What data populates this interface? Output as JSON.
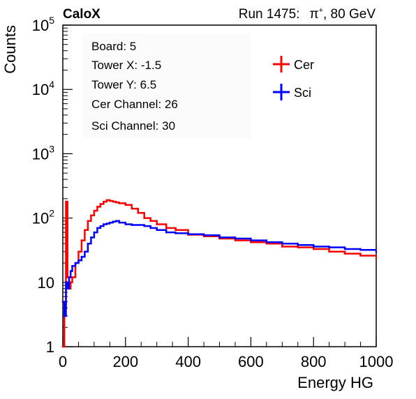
{
  "header": {
    "experiment": "CaloX",
    "run_label": "Run 1475:",
    "particle": "π",
    "particle_charge": "+",
    "energy": ", 80 GeV"
  },
  "info_box": {
    "lines": [
      "Board: 5",
      "Tower X: -1.5",
      "Tower Y: 6.5",
      "Cer Channel: 26",
      "Sci Channel: 30"
    ]
  },
  "chart_data": {
    "type": "line",
    "title": "",
    "xlabel": "Energy HG",
    "ylabel": "Counts",
    "xlim": [
      0,
      1000
    ],
    "ylim": [
      1,
      100000
    ],
    "yscale": "log",
    "x_ticks": [
      0,
      200,
      400,
      600,
      800,
      1000
    ],
    "x_tick_labels": [
      "0",
      "200",
      "400",
      "600",
      "800",
      "1000"
    ],
    "y_ticks": [
      1,
      10,
      100,
      1000,
      10000,
      100000
    ],
    "y_tick_labels": [
      {
        "base": "1",
        "exp": ""
      },
      {
        "base": "10",
        "exp": ""
      },
      {
        "base": "10",
        "exp": "2"
      },
      {
        "base": "10",
        "exp": "3"
      },
      {
        "base": "10",
        "exp": "4"
      },
      {
        "base": "10",
        "exp": "5"
      }
    ],
    "grid": false,
    "legend_position": "top-right",
    "colors": {
      "Cer": "#ff0000",
      "Sci": "#0000ff"
    },
    "series": [
      {
        "name": "Cer",
        "x": [
          0,
          5,
          10,
          15,
          20,
          25,
          30,
          40,
          50,
          60,
          70,
          80,
          90,
          100,
          110,
          120,
          130,
          140,
          150,
          160,
          170,
          180,
          200,
          220,
          240,
          260,
          280,
          300,
          330,
          360,
          400,
          450,
          500,
          550,
          600,
          650,
          700,
          750,
          800,
          850,
          900,
          950,
          1000
        ],
        "y": [
          1,
          4,
          180,
          12,
          8,
          10,
          12,
          20,
          30,
          45,
          65,
          90,
          110,
          130,
          150,
          165,
          180,
          190,
          185,
          180,
          175,
          170,
          160,
          140,
          120,
          100,
          90,
          80,
          70,
          65,
          55,
          52,
          48,
          45,
          42,
          40,
          36,
          35,
          33,
          30,
          28,
          26,
          24
        ]
      },
      {
        "name": "Sci",
        "x": [
          0,
          5,
          10,
          15,
          20,
          25,
          30,
          40,
          50,
          60,
          70,
          80,
          90,
          100,
          110,
          120,
          130,
          140,
          150,
          160,
          170,
          180,
          200,
          220,
          240,
          260,
          280,
          300,
          330,
          360,
          400,
          450,
          500,
          550,
          600,
          650,
          700,
          750,
          800,
          850,
          900,
          950,
          1000
        ],
        "y": [
          5,
          3,
          10,
          8,
          12,
          15,
          18,
          20,
          22,
          25,
          30,
          40,
          50,
          60,
          70,
          75,
          80,
          82,
          85,
          88,
          90,
          85,
          80,
          78,
          78,
          75,
          70,
          65,
          60,
          58,
          56,
          54,
          50,
          48,
          45,
          42,
          40,
          38,
          36,
          35,
          33,
          32,
          30
        ]
      }
    ]
  }
}
